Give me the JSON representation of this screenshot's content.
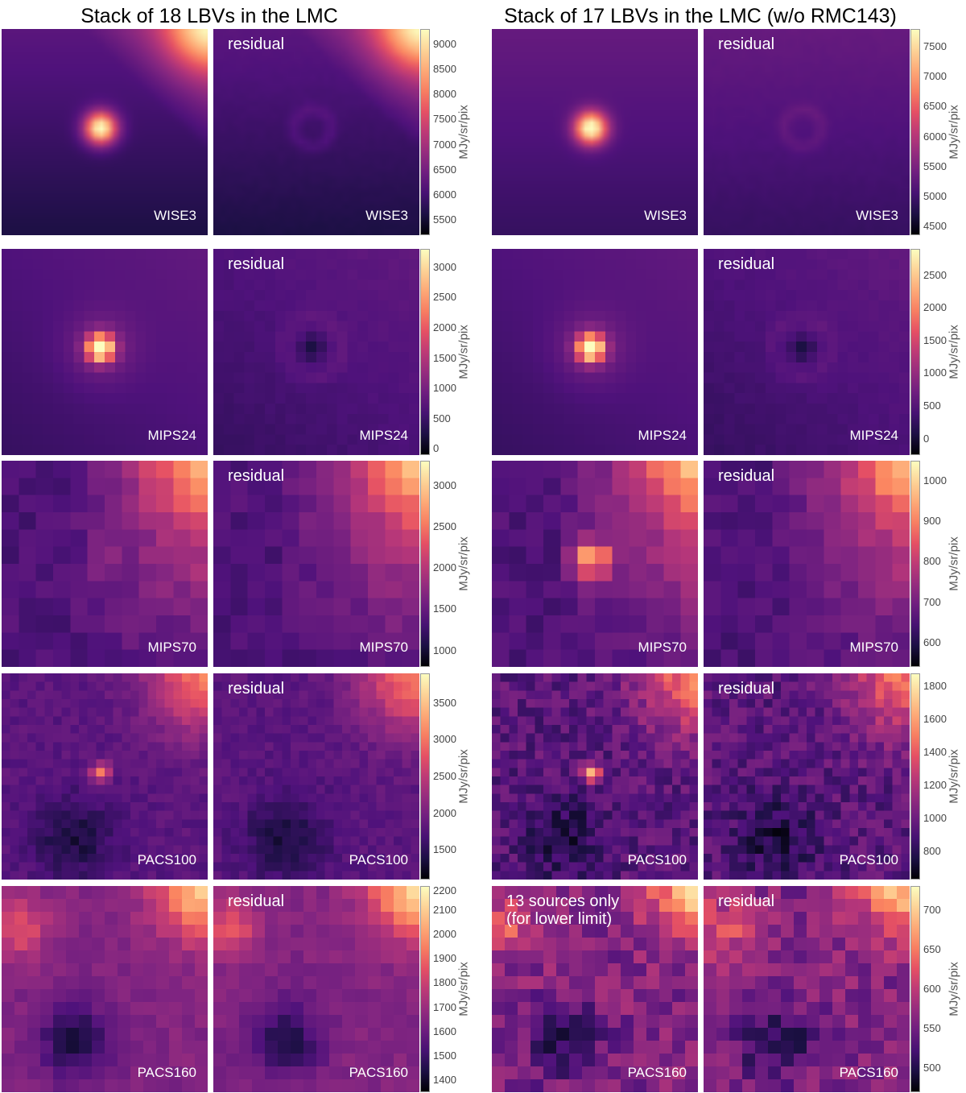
{
  "titles": {
    "left": "Stack of 18 LBVs in the LMC",
    "right": "Stack of 17 LBVs in the LMC (w/o RMC143)"
  },
  "residual_label": "residual",
  "colormap": "magma",
  "colorbar_label": "MJy/sr/pix",
  "rows": [
    {
      "band": "WISE3",
      "left": {
        "ticks": [
          "9000",
          "8500",
          "8000",
          "7500",
          "7000",
          "6500",
          "6000",
          "5500"
        ],
        "values": [
          9000,
          8500,
          8000,
          7500,
          7000,
          6500,
          6000,
          5500
        ],
        "range": [
          5200,
          9300
        ]
      },
      "right": {
        "ticks": [
          "7500",
          "7000",
          "6500",
          "6000",
          "5500",
          "5000",
          "4500"
        ],
        "values": [
          7500,
          7000,
          6500,
          6000,
          5500,
          5000,
          4500
        ],
        "range": [
          4350,
          7800
        ]
      }
    },
    {
      "band": "MIPS24",
      "left": {
        "ticks": [
          "3000",
          "2500",
          "2000",
          "1500",
          "1000",
          "500",
          "0"
        ],
        "values": [
          3000,
          2500,
          2000,
          1500,
          1000,
          500,
          0
        ],
        "range": [
          -100,
          3300
        ]
      },
      "right": {
        "ticks": [
          "2500",
          "2000",
          "1500",
          "1000",
          "500",
          "0"
        ],
        "values": [
          2500,
          2000,
          1500,
          1000,
          500,
          0
        ],
        "range": [
          -250,
          2900
        ]
      }
    },
    {
      "band": "MIPS70",
      "left": {
        "ticks": [
          "3000",
          "2500",
          "2000",
          "1500",
          "1000"
        ],
        "values": [
          3000,
          2500,
          2000,
          1500,
          1000
        ],
        "range": [
          800,
          3300
        ]
      },
      "right": {
        "ticks": [
          "1000",
          "900",
          "800",
          "700",
          "600"
        ],
        "values": [
          1000,
          900,
          800,
          700,
          600
        ],
        "range": [
          540,
          1050
        ]
      }
    },
    {
      "band": "PACS100",
      "left": {
        "ticks": [
          "3500",
          "3000",
          "2500",
          "2000",
          "1500"
        ],
        "values": [
          3500,
          3000,
          2500,
          2000,
          1500
        ],
        "range": [
          1100,
          3900
        ]
      },
      "right": {
        "ticks": [
          "1800",
          "1600",
          "1400",
          "1200",
          "1000",
          "800"
        ],
        "values": [
          1800,
          1600,
          1400,
          1200,
          1000,
          800
        ],
        "range": [
          630,
          1880
        ]
      }
    },
    {
      "band": "PACS160",
      "left": {
        "ticks": [
          "2200",
          "2100",
          "2000",
          "1900",
          "1800",
          "1700",
          "1600",
          "1500",
          "1400"
        ],
        "values": [
          2200,
          2100,
          2000,
          1900,
          1800,
          1700,
          1600,
          1500,
          1400
        ],
        "range": [
          1350,
          2200
        ]
      },
      "right": {
        "ticks": [
          "700",
          "650",
          "600",
          "550",
          "500"
        ],
        "values": [
          700,
          650,
          600,
          550,
          500
        ],
        "range": [
          470,
          730
        ]
      }
    }
  ],
  "special_note": "13 sources only\n(for lower limit)"
}
